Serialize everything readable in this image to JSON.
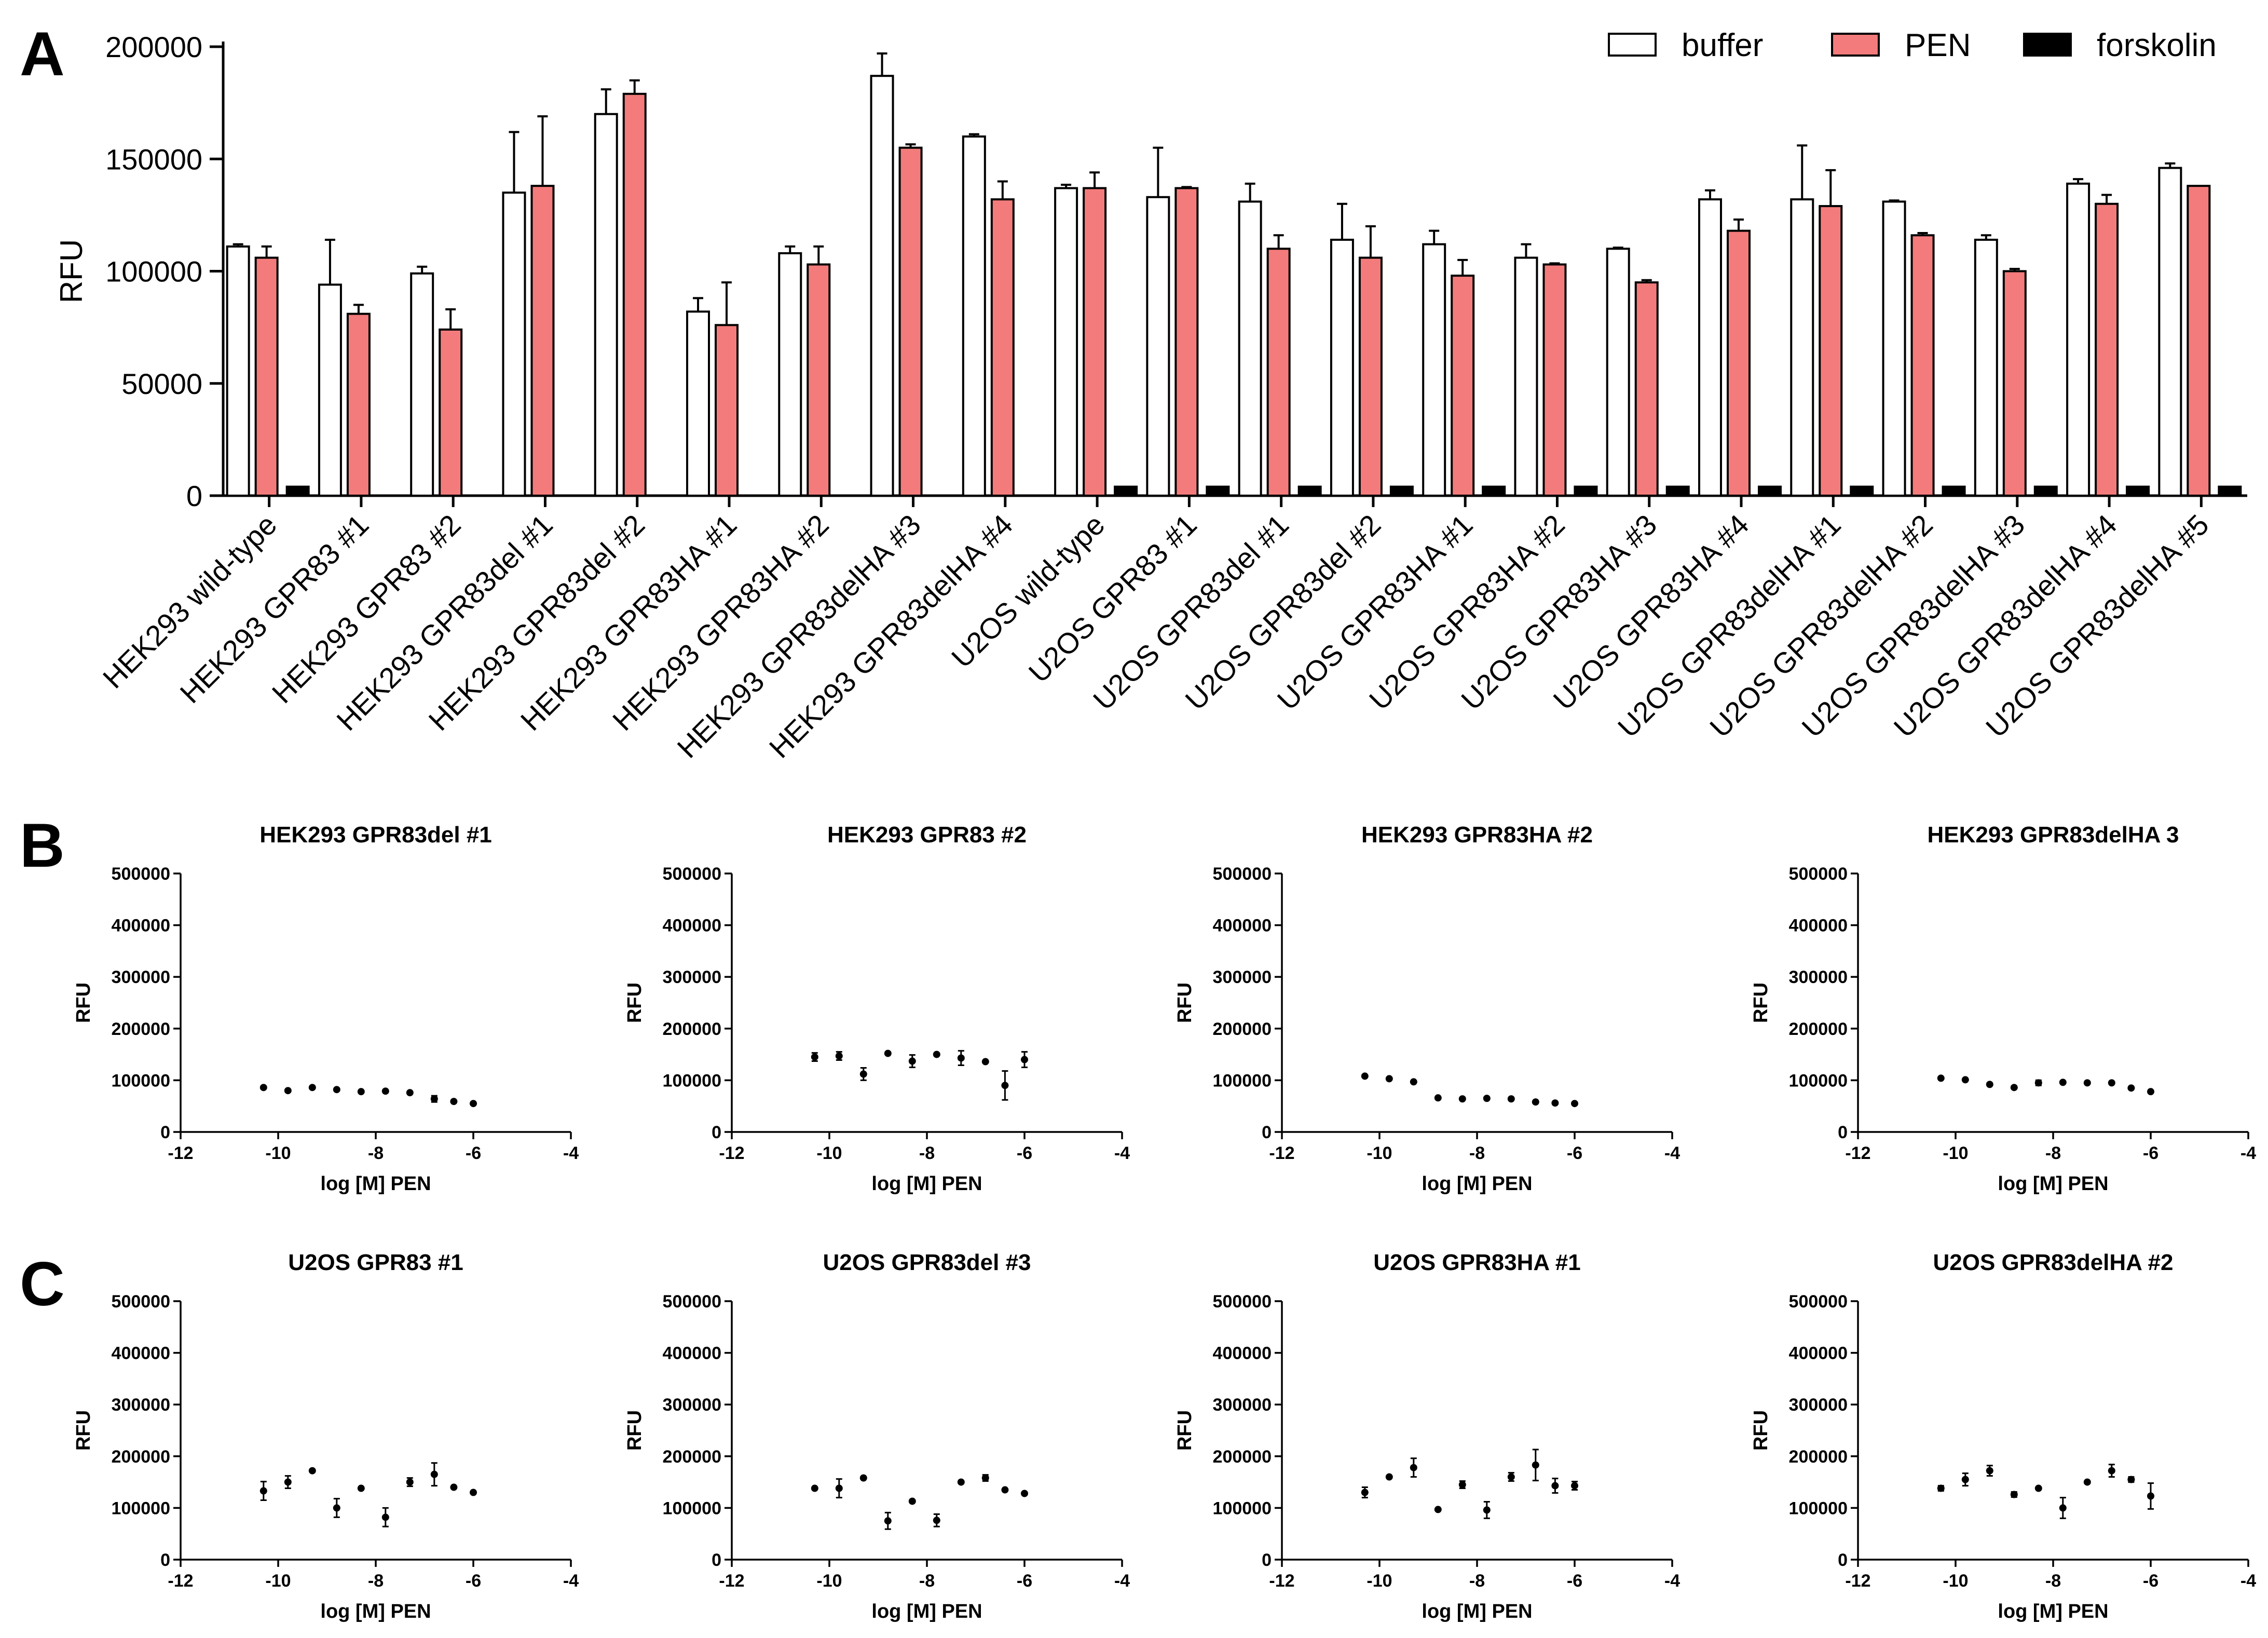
{
  "panels": {
    "a": "A",
    "b": "B",
    "c": "C"
  },
  "chart_data": [
    {
      "id": "A",
      "type": "bar",
      "title": "",
      "xlabel": "",
      "ylabel": "RFU",
      "ylim": [
        0,
        200000
      ],
      "yticks": [
        0,
        50000,
        100000,
        150000,
        200000
      ],
      "ytick_labels": [
        "0",
        "50000",
        "100000",
        "150000",
        "200000"
      ],
      "legend": {
        "position": "top-right",
        "entries": [
          "buffer",
          "PEN",
          "forskolin"
        ]
      },
      "colors": {
        "buffer": "#ffffff",
        "PEN": "#f47b7b",
        "forskolin": "#000000"
      },
      "categories": [
        "HEK293 wild-type",
        "HEK293 GPR83 #1",
        "HEK293 GPR83 #2",
        "HEK293 GPR83del #1",
        "HEK293 GPR83del #2",
        "HEK293 GPR83HA #1",
        "HEK293 GPR83HA #2",
        "HEK293 GPR83delHA #3",
        "HEK293 GPR83delHA #4",
        "U2OS wild-type",
        "U2OS GPR83 #1",
        "U2OS GPR83del #1",
        "U2OS GPR83del #2",
        "U2OS GPR83HA #1",
        "U2OS GPR83HA #2",
        "U2OS GPR83HA #3",
        "U2OS GPR83HA #4",
        "U2OS GPR83delHA #1",
        "U2OS GPR83delHA #2",
        "U2OS GPR83delHA #3",
        "U2OS GPR83delHA #4",
        "U2OS GPR83delHA #5"
      ],
      "series": [
        {
          "name": "buffer",
          "values": [
            111000,
            94000,
            99000,
            135000,
            170000,
            82000,
            108000,
            187000,
            160000,
            137000,
            133000,
            131000,
            114000,
            112000,
            106000,
            110000,
            132000,
            132000,
            131000,
            114000,
            139000,
            146000
          ],
          "errors": [
            1000,
            20000,
            3000,
            27000,
            11000,
            6000,
            3000,
            10000,
            1000,
            1500,
            22000,
            8000,
            16000,
            6000,
            6000,
            500,
            4000,
            24000,
            500,
            2000,
            2000,
            2000
          ]
        },
        {
          "name": "PEN",
          "values": [
            106000,
            81000,
            74000,
            138000,
            179000,
            76000,
            103000,
            155000,
            132000,
            137000,
            137000,
            110000,
            106000,
            98000,
            103000,
            95000,
            118000,
            129000,
            116000,
            100000,
            130000,
            138000
          ],
          "errors": [
            5000,
            4000,
            9000,
            31000,
            6000,
            19000,
            8000,
            1500,
            8000,
            7000,
            500,
            6000,
            14000,
            7000,
            500,
            1000,
            5000,
            16000,
            1000,
            1000,
            4000,
            0
          ]
        },
        {
          "name": "forskolin",
          "values": [
            4000,
            null,
            null,
            null,
            null,
            null,
            null,
            null,
            null,
            4000,
            4000,
            4000,
            4000,
            4000,
            4000,
            4000,
            4000,
            4000,
            4000,
            4000,
            4000,
            4000
          ]
        }
      ]
    },
    {
      "id": "B1",
      "type": "scatter",
      "title": "HEK293 GPR83del #1",
      "xlabel": "log [M] PEN",
      "ylabel": "RFU",
      "xlim": [
        -12,
        -4
      ],
      "ylim": [
        0,
        500000
      ],
      "xticks": [
        "-12",
        "-10",
        "-8",
        "-6",
        "-4"
      ],
      "ytick_labels": [
        "0",
        "100000",
        "200000",
        "300000",
        "400000",
        "500000"
      ],
      "x": [
        -10.3,
        -9.8,
        -9.3,
        -8.8,
        -8.3,
        -7.8,
        -7.3,
        -6.8,
        -6.4,
        -6.0
      ],
      "y": [
        86000,
        80000,
        86000,
        82000,
        78000,
        79000,
        76000,
        64000,
        59000,
        55000
      ],
      "err": [
        0,
        0,
        0,
        0,
        0,
        0,
        0,
        6000,
        0,
        0
      ]
    },
    {
      "id": "B2",
      "type": "scatter",
      "title": "HEK293 GPR83 #2",
      "xlabel": "log [M] PEN",
      "ylabel": "RFU",
      "xlim": [
        -12,
        -4
      ],
      "ylim": [
        0,
        500000
      ],
      "xticks": [
        "-12",
        "-10",
        "-8",
        "-6",
        "-4"
      ],
      "ytick_labels": [
        "0",
        "100000",
        "200000",
        "300000",
        "400000",
        "500000"
      ],
      "x": [
        -10.3,
        -9.8,
        -9.3,
        -8.8,
        -8.3,
        -7.8,
        -7.3,
        -6.8,
        -6.4,
        -6.0
      ],
      "y": [
        145000,
        147000,
        112000,
        152000,
        137000,
        150000,
        143000,
        136000,
        90000,
        140000
      ],
      "err": [
        8000,
        8000,
        12000,
        0,
        12000,
        0,
        14000,
        0,
        28000,
        15000
      ]
    },
    {
      "id": "B3",
      "type": "scatter",
      "title": "HEK293 GPR83HA #2",
      "xlabel": "log [M] PEN",
      "ylabel": "RFU",
      "xlim": [
        -12,
        -4
      ],
      "ylim": [
        0,
        500000
      ],
      "xticks": [
        "-12",
        "-10",
        "-8",
        "-6",
        "-4"
      ],
      "ytick_labels": [
        "0",
        "100000",
        "200000",
        "300000",
        "400000",
        "500000"
      ],
      "x": [
        -10.3,
        -9.8,
        -9.3,
        -8.8,
        -8.3,
        -7.8,
        -7.3,
        -6.8,
        -6.4,
        -6.0
      ],
      "y": [
        108000,
        103000,
        97000,
        66000,
        64000,
        65000,
        64000,
        58000,
        56000,
        55000
      ],
      "err": [
        0,
        0,
        0,
        0,
        0,
        0,
        0,
        0,
        0,
        0
      ]
    },
    {
      "id": "B4",
      "type": "scatter",
      "title": "HEK293 GPR83delHA 3",
      "xlabel": "log [M] PEN",
      "ylabel": "RFU",
      "xlim": [
        -12,
        -4
      ],
      "ylim": [
        0,
        500000
      ],
      "xticks": [
        "-12",
        "-10",
        "-8",
        "-6",
        "-4"
      ],
      "ytick_labels": [
        "0",
        "100000",
        "200000",
        "300000",
        "400000",
        "500000"
      ],
      "x": [
        -10.3,
        -9.8,
        -9.3,
        -8.8,
        -8.3,
        -7.8,
        -7.3,
        -6.8,
        -6.4,
        -6.0
      ],
      "y": [
        104000,
        101000,
        92000,
        86000,
        95000,
        96000,
        95000,
        95000,
        85000,
        78000
      ],
      "err": [
        0,
        0,
        0,
        0,
        5000,
        0,
        0,
        0,
        0,
        0
      ]
    },
    {
      "id": "C1",
      "type": "scatter",
      "title": "U2OS GPR83 #1",
      "xlabel": "log [M] PEN",
      "ylabel": "RFU",
      "xlim": [
        -12,
        -4
      ],
      "ylim": [
        0,
        500000
      ],
      "xticks": [
        "-12",
        "-10",
        "-8",
        "-6",
        "-4"
      ],
      "ytick_labels": [
        "0",
        "100000",
        "200000",
        "300000",
        "400000",
        "500000"
      ],
      "x": [
        -10.3,
        -9.8,
        -9.3,
        -8.8,
        -8.3,
        -7.8,
        -7.3,
        -6.8,
        -6.4,
        -6.0
      ],
      "y": [
        133000,
        150000,
        172000,
        100000,
        138000,
        82000,
        150000,
        165000,
        140000,
        130000
      ],
      "err": [
        18000,
        12000,
        0,
        18000,
        0,
        18000,
        8000,
        22000,
        0,
        0
      ]
    },
    {
      "id": "C2",
      "type": "scatter",
      "title": "U2OS GPR83del #3",
      "xlabel": "log [M] PEN",
      "ylabel": "RFU",
      "xlim": [
        -12,
        -4
      ],
      "ylim": [
        0,
        500000
      ],
      "xticks": [
        "-12",
        "-10",
        "-8",
        "-6",
        "-4"
      ],
      "ytick_labels": [
        "0",
        "100000",
        "200000",
        "300000",
        "400000",
        "500000"
      ],
      "x": [
        -10.3,
        -9.8,
        -9.3,
        -8.8,
        -8.3,
        -7.8,
        -7.3,
        -6.8,
        -6.4,
        -6.0
      ],
      "y": [
        138000,
        138000,
        158000,
        75000,
        113000,
        76000,
        150000,
        158000,
        135000,
        128000
      ],
      "err": [
        0,
        18000,
        0,
        16000,
        0,
        12000,
        0,
        6000,
        0,
        0
      ]
    },
    {
      "id": "C3",
      "type": "scatter",
      "title": "U2OS GPR83HA #1",
      "xlabel": "log [M] PEN",
      "ylabel": "RFU",
      "xlim": [
        -12,
        -4
      ],
      "ylim": [
        0,
        500000
      ],
      "xticks": [
        "-12",
        "-10",
        "-8",
        "-6",
        "-4"
      ],
      "ytick_labels": [
        "0",
        "100000",
        "200000",
        "300000",
        "400000",
        "500000"
      ],
      "x": [
        -10.3,
        -9.8,
        -9.3,
        -8.8,
        -8.3,
        -7.8,
        -7.3,
        -6.8,
        -6.4,
        -6.0
      ],
      "y": [
        130000,
        160000,
        178000,
        97000,
        145000,
        96000,
        160000,
        183000,
        143000,
        143000
      ],
      "err": [
        10000,
        0,
        18000,
        0,
        7000,
        16000,
        8000,
        30000,
        14000,
        8000
      ]
    },
    {
      "id": "C4",
      "type": "scatter",
      "title": "U2OS GPR83delHA #2",
      "xlabel": "log [M] PEN",
      "ylabel": "RFU",
      "xlim": [
        -12,
        -4
      ],
      "ylim": [
        0,
        500000
      ],
      "xticks": [
        "-12",
        "-10",
        "-8",
        "-6",
        "-4"
      ],
      "ytick_labels": [
        "0",
        "100000",
        "200000",
        "300000",
        "400000",
        "500000"
      ],
      "x": [
        -10.3,
        -9.8,
        -9.3,
        -8.8,
        -8.3,
        -7.8,
        -7.3,
        -6.8,
        -6.4,
        -6.0
      ],
      "y": [
        138000,
        155000,
        172000,
        126000,
        138000,
        100000,
        150000,
        172000,
        155000,
        123000
      ],
      "err": [
        5000,
        12000,
        10000,
        5000,
        0,
        20000,
        0,
        12000,
        5000,
        25000
      ]
    }
  ]
}
